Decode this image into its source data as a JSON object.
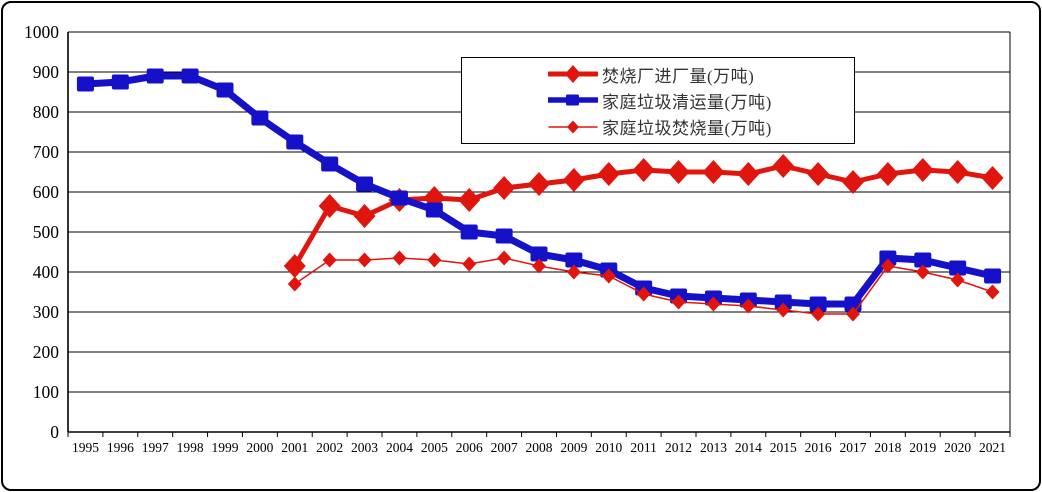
{
  "chart_data": {
    "type": "line",
    "title": "",
    "x_categories": [
      "1995",
      "1996",
      "1997",
      "1998",
      "1999",
      "2000",
      "2001",
      "2002",
      "2003",
      "2004",
      "2005",
      "2006",
      "2007",
      "2008",
      "2009",
      "2010",
      "2011",
      "2012",
      "2013",
      "2014",
      "2015",
      "2016",
      "2017",
      "2018",
      "2019",
      "2020",
      "2021"
    ],
    "xlabel": "",
    "ylabel": "",
    "y_axis": {
      "min": 0,
      "max": 1000,
      "step": 100,
      "tick_labels": [
        "0",
        "100",
        "200",
        "300",
        "400",
        "500",
        "600",
        "700",
        "800",
        "900",
        "1000"
      ]
    },
    "grid": true,
    "legend_position": "top-center",
    "series": [
      {
        "name": "焚烧厂进厂量(万吨)",
        "color": "#E0150E",
        "marker": "diamond-large",
        "line_width": 5,
        "values": [
          null,
          null,
          null,
          null,
          null,
          null,
          415,
          565,
          540,
          580,
          585,
          580,
          610,
          620,
          630,
          645,
          655,
          650,
          650,
          645,
          665,
          645,
          625,
          645,
          655,
          650,
          635
        ]
      },
      {
        "name": "家庭垃圾清运量(万吨)",
        "color": "#1511C9",
        "marker": "square",
        "line_width": 7,
        "values": [
          870,
          875,
          890,
          890,
          855,
          785,
          725,
          670,
          620,
          585,
          555,
          500,
          490,
          445,
          430,
          405,
          360,
          340,
          335,
          330,
          325,
          320,
          320,
          435,
          430,
          410,
          390
        ]
      },
      {
        "name": "家庭垃圾焚烧量(万吨)",
        "color": "#E0150E",
        "marker": "diamond-small",
        "line_width": 1.5,
        "values": [
          null,
          null,
          null,
          null,
          null,
          null,
          370,
          430,
          430,
          435,
          430,
          420,
          435,
          415,
          400,
          390,
          345,
          325,
          320,
          315,
          305,
          295,
          295,
          415,
          400,
          380,
          350
        ]
      }
    ]
  },
  "colors": {
    "grid": "#000000",
    "axis_text": "#000000",
    "legend_text": "#333333",
    "background": "#ffffff",
    "frame_border": "#000000"
  }
}
